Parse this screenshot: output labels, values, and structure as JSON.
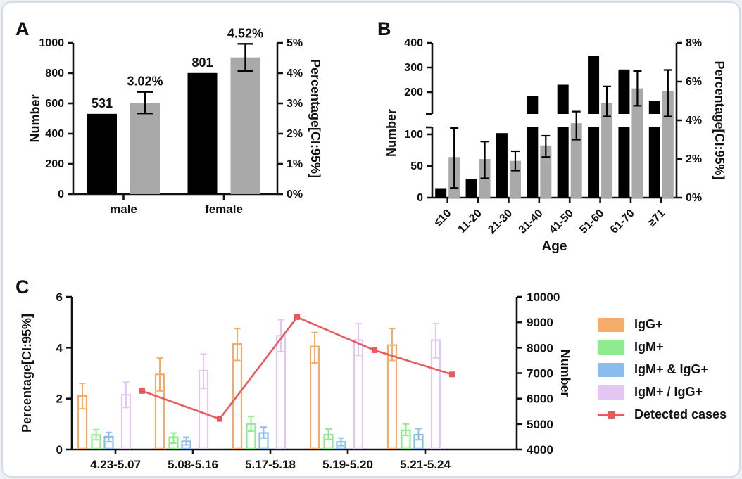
{
  "figure": {
    "panels": [
      {
        "letter": "A"
      },
      {
        "letter": "B"
      },
      {
        "letter": "C"
      }
    ]
  },
  "colors": {
    "bar_black": "#000000",
    "bar_gray": "#a9a9a9",
    "igg_orange": "#f5ac66",
    "igm_green": "#8dec8d",
    "igm_and_igg_blue": "#88bdee",
    "igm_or_igg_purple": "#e3c6f2",
    "detected_red": "#e8595c",
    "axis": "#111111"
  },
  "chart_data": [
    {
      "panel": "A",
      "type": "bar",
      "categories": [
        "male",
        "female"
      ],
      "series": [
        {
          "name": "Number",
          "axis": "left",
          "color_key": "bar_black",
          "values": [
            531,
            801
          ],
          "value_labels": [
            "531",
            "801"
          ]
        },
        {
          "name": "Percentage",
          "axis": "right",
          "color_key": "bar_gray",
          "values": [
            3.02,
            4.52
          ],
          "value_labels": [
            "3.02%",
            "4.52%"
          ],
          "ci_low": [
            2.67,
            4.07
          ],
          "ci_high": [
            3.38,
            4.97
          ]
        }
      ],
      "left_axis": {
        "label": "Number",
        "min": 0,
        "max": 1000,
        "tick_labels": [
          "0",
          "200",
          "400",
          "600",
          "800",
          "1000"
        ]
      },
      "right_axis": {
        "label": "Percentage[CI:95%]",
        "min": 0,
        "max": 5,
        "tick_labels": [
          "0%",
          "1%",
          "2%",
          "3%",
          "4%",
          "5%"
        ]
      },
      "grid": false,
      "legend_position": "none"
    },
    {
      "panel": "B",
      "type": "bar",
      "categories": [
        "≤10",
        "11-20",
        "21-30",
        "31-40",
        "41-50",
        "51-60",
        "61-70",
        "≥71"
      ],
      "xlabel": "Age",
      "series": [
        {
          "name": "Number",
          "axis": "left",
          "color_key": "bar_black",
          "values": [
            15,
            30,
            102,
            185,
            230,
            348,
            292,
            165
          ]
        },
        {
          "name": "Percentage",
          "axis": "right",
          "color_key": "bar_gray",
          "values": [
            2.1,
            2.0,
            1.9,
            2.7,
            3.85,
            4.9,
            5.65,
            5.5
          ],
          "ci_low": [
            0.5,
            1.0,
            1.4,
            2.1,
            3.0,
            4.2,
            4.75,
            4.2
          ],
          "ci_high": [
            3.6,
            2.9,
            2.4,
            3.2,
            4.45,
            5.75,
            6.55,
            6.6
          ]
        }
      ],
      "left_axis": {
        "label": "Number",
        "broken": true,
        "lower_ticks": [
          0,
          50,
          100
        ],
        "lower_tick_labels": [
          "0",
          "50",
          "100"
        ],
        "upper_ticks": [
          200,
          300,
          400
        ],
        "upper_tick_labels": [
          "200",
          "300",
          "400"
        ]
      },
      "right_axis": {
        "label": "Percentage[CI:95%]",
        "min": 0,
        "max": 8,
        "tick_labels": [
          "0%",
          "2%",
          "4%",
          "6%",
          "8%"
        ]
      },
      "grid": false,
      "legend_position": "none"
    },
    {
      "panel": "C",
      "type": "grouped-bar-line",
      "categories": [
        "4.23-5.07",
        "5.08-5.16",
        "5.17-5.18",
        "5.19-5.20",
        "5.21-5.24"
      ],
      "bar_series": [
        {
          "name": "IgG+",
          "color_key": "igg_orange",
          "values": [
            2.1,
            2.95,
            4.15,
            4.05,
            4.1
          ],
          "ci_low": [
            1.6,
            2.3,
            3.5,
            3.4,
            3.5
          ],
          "ci_high": [
            2.6,
            3.6,
            4.75,
            4.6,
            4.75
          ]
        },
        {
          "name": "IgM+",
          "color_key": "igm_green",
          "values": [
            0.57,
            0.48,
            1.0,
            0.58,
            0.75
          ],
          "ci_low": [
            0.38,
            0.25,
            0.72,
            0.4,
            0.55
          ],
          "ci_high": [
            0.78,
            0.65,
            1.3,
            0.8,
            1.0
          ]
        },
        {
          "name": "IgM+ & IgG+",
          "color_key": "igm_and_igg_blue",
          "values": [
            0.5,
            0.32,
            0.65,
            0.3,
            0.58
          ],
          "ci_low": [
            0.3,
            0.18,
            0.45,
            0.15,
            0.38
          ],
          "ci_high": [
            0.67,
            0.48,
            0.88,
            0.45,
            0.82
          ]
        },
        {
          "name": "IgM+ / IgG+",
          "color_key": "igm_or_igg_purple",
          "values": [
            2.15,
            3.1,
            4.47,
            4.3,
            4.3
          ],
          "ci_low": [
            1.65,
            2.4,
            3.85,
            3.7,
            3.6
          ],
          "ci_high": [
            2.65,
            3.75,
            5.1,
            4.95,
            4.95
          ]
        }
      ],
      "line_series": {
        "name": "Detected cases",
        "color_key": "detected_red",
        "values": [
          6300,
          5200,
          9200,
          7900,
          6950
        ]
      },
      "left_axis": {
        "label": "Percentage[CI:95%]",
        "min": 0,
        "max": 6,
        "tick_labels": [
          "0",
          "2",
          "4",
          "6"
        ]
      },
      "right_axis": {
        "label": "Number",
        "min": 4000,
        "max": 10000,
        "tick_labels": [
          "4000",
          "5000",
          "6000",
          "7000",
          "8000",
          "9000",
          "10000"
        ]
      },
      "grid": false,
      "legend_position": "right"
    }
  ],
  "legend": {
    "items": [
      {
        "label": "IgG+",
        "color_key": "igg_orange",
        "type": "box"
      },
      {
        "label": "IgM+",
        "color_key": "igm_green",
        "type": "box"
      },
      {
        "label": "IgM+ & IgG+",
        "color_key": "igm_and_igg_blue",
        "type": "box"
      },
      {
        "label": "IgM+ / IgG+",
        "color_key": "igm_or_igg_purple",
        "type": "box"
      },
      {
        "label": "Detected cases",
        "color_key": "detected_red",
        "type": "line"
      }
    ]
  }
}
